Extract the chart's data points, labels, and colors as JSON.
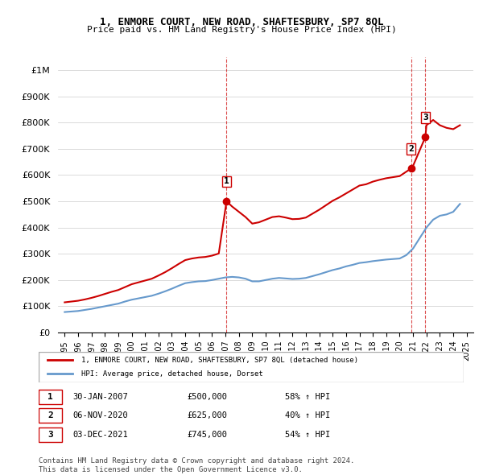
{
  "title": "1, ENMORE COURT, NEW ROAD, SHAFTESBURY, SP7 8QL",
  "subtitle": "Price paid vs. HM Land Registry's House Price Index (HPI)",
  "legend_line1": "1, ENMORE COURT, NEW ROAD, SHAFTESBURY, SP7 8QL (detached house)",
  "legend_line2": "HPI: Average price, detached house, Dorset",
  "footer1": "Contains HM Land Registry data © Crown copyright and database right 2024.",
  "footer2": "This data is licensed under the Open Government Licence v3.0.",
  "transactions": [
    {
      "num": "1",
      "date": "30-JAN-2007",
      "price": "£500,000",
      "hpi": "58% ↑ HPI",
      "x": 2007.08
    },
    {
      "num": "2",
      "date": "06-NOV-2020",
      "price": "£625,000",
      "hpi": "40% ↑ HPI",
      "x": 2020.85
    },
    {
      "num": "3",
      "date": "03-DEC-2021",
      "price": "£745,000",
      "hpi": "54% ↑ HPI",
      "x": 2021.92
    }
  ],
  "red_line_color": "#cc0000",
  "blue_line_color": "#6699cc",
  "marker_color_red": "#cc0000",
  "marker_color_blue": "#6699cc",
  "transaction_marker_color": "#cc0000",
  "ylim": [
    0,
    1050000
  ],
  "xlim_start": 1994.5,
  "xlim_end": 2025.5,
  "hpi_data": {
    "x": [
      1995.0,
      1995.5,
      1996.0,
      1996.5,
      1997.0,
      1997.5,
      1998.0,
      1998.5,
      1999.0,
      1999.5,
      2000.0,
      2000.5,
      2001.0,
      2001.5,
      2002.0,
      2002.5,
      2003.0,
      2003.5,
      2004.0,
      2004.5,
      2005.0,
      2005.5,
      2006.0,
      2006.5,
      2007.0,
      2007.5,
      2008.0,
      2008.5,
      2009.0,
      2009.5,
      2010.0,
      2010.5,
      2011.0,
      2011.5,
      2012.0,
      2012.5,
      2013.0,
      2013.5,
      2014.0,
      2014.5,
      2015.0,
      2015.5,
      2016.0,
      2016.5,
      2017.0,
      2017.5,
      2018.0,
      2018.5,
      2019.0,
      2019.5,
      2020.0,
      2020.5,
      2021.0,
      2021.5,
      2022.0,
      2022.5,
      2023.0,
      2023.5,
      2024.0,
      2024.5
    ],
    "y": [
      78000,
      80000,
      82000,
      86000,
      90000,
      95000,
      100000,
      105000,
      110000,
      118000,
      125000,
      130000,
      135000,
      140000,
      148000,
      157000,
      167000,
      178000,
      188000,
      192000,
      195000,
      196000,
      200000,
      205000,
      210000,
      212000,
      210000,
      205000,
      195000,
      195000,
      200000,
      205000,
      208000,
      206000,
      204000,
      205000,
      208000,
      215000,
      222000,
      230000,
      238000,
      244000,
      252000,
      258000,
      265000,
      268000,
      272000,
      275000,
      278000,
      280000,
      282000,
      295000,
      320000,
      360000,
      400000,
      430000,
      445000,
      450000,
      460000,
      490000
    ]
  },
  "red_line_data": {
    "x": [
      1995.0,
      1995.5,
      1996.0,
      1996.5,
      1997.0,
      1997.5,
      1998.0,
      1998.5,
      1999.0,
      1999.5,
      2000.0,
      2000.5,
      2001.0,
      2001.5,
      2002.0,
      2002.5,
      2003.0,
      2003.5,
      2004.0,
      2004.5,
      2005.0,
      2005.5,
      2006.0,
      2006.5,
      2007.08,
      2007.5,
      2008.0,
      2008.5,
      2009.0,
      2009.5,
      2010.0,
      2010.5,
      2011.0,
      2011.5,
      2012.0,
      2012.5,
      2013.0,
      2013.5,
      2014.0,
      2014.5,
      2015.0,
      2015.5,
      2016.0,
      2016.5,
      2017.0,
      2017.5,
      2018.0,
      2018.5,
      2019.0,
      2019.5,
      2020.0,
      2020.85,
      2021.0,
      2021.92,
      2022.0,
      2022.5,
      2023.0,
      2023.5,
      2024.0,
      2024.5
    ],
    "y": [
      115000,
      118000,
      121000,
      126000,
      132000,
      139000,
      147000,
      155000,
      162000,
      173000,
      184000,
      191000,
      198000,
      205000,
      217000,
      230000,
      245000,
      261000,
      276000,
      282000,
      286000,
      288000,
      293000,
      301000,
      500000,
      480000,
      460000,
      440000,
      415000,
      420000,
      430000,
      440000,
      443000,
      438000,
      432000,
      433000,
      438000,
      453000,
      468000,
      485000,
      502000,
      515000,
      530000,
      545000,
      560000,
      565000,
      575000,
      582000,
      588000,
      592000,
      596000,
      625000,
      635000,
      745000,
      790000,
      810000,
      790000,
      780000,
      775000,
      790000
    ]
  }
}
